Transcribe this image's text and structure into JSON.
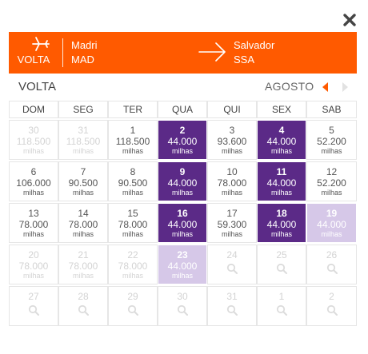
{
  "close_icon": "close-icon",
  "header": {
    "direction_icon": "airplane-icon",
    "direction_label": "VOLTA",
    "origin": {
      "city": "Madri",
      "code": "MAD"
    },
    "route_icon": "arrow-right-icon",
    "destination": {
      "city": "Salvador",
      "code": "SSA"
    }
  },
  "calendar": {
    "title": "VOLTA",
    "month": "AGOSTO",
    "prev_icon": "caret-left-icon",
    "next_icon": "caret-right-icon",
    "weekdays": [
      "DOM",
      "SEG",
      "TER",
      "QUA",
      "QUI",
      "SEX",
      "SAB"
    ],
    "unit": "milhas",
    "weeks": [
      [
        {
          "day": "30",
          "price": "118.500",
          "state": "faded"
        },
        {
          "day": "31",
          "price": "118.500",
          "state": "faded"
        },
        {
          "day": "1",
          "price": "118.500",
          "state": "normal"
        },
        {
          "day": "2",
          "price": "44.000",
          "state": "highlight"
        },
        {
          "day": "3",
          "price": "93.600",
          "state": "normal"
        },
        {
          "day": "4",
          "price": "44.000",
          "state": "highlight"
        },
        {
          "day": "5",
          "price": "52.200",
          "state": "normal"
        }
      ],
      [
        {
          "day": "6",
          "price": "106.000",
          "state": "normal"
        },
        {
          "day": "7",
          "price": "90.500",
          "state": "normal"
        },
        {
          "day": "8",
          "price": "90.500",
          "state": "normal"
        },
        {
          "day": "9",
          "price": "44.000",
          "state": "highlight"
        },
        {
          "day": "10",
          "price": "78.000",
          "state": "normal"
        },
        {
          "day": "11",
          "price": "44.000",
          "state": "highlight"
        },
        {
          "day": "12",
          "price": "52.200",
          "state": "normal"
        }
      ],
      [
        {
          "day": "13",
          "price": "78.000",
          "state": "normal"
        },
        {
          "day": "14",
          "price": "78.000",
          "state": "normal"
        },
        {
          "day": "15",
          "price": "78.000",
          "state": "normal"
        },
        {
          "day": "16",
          "price": "44.000",
          "state": "highlight"
        },
        {
          "day": "17",
          "price": "59.300",
          "state": "normal"
        },
        {
          "day": "18",
          "price": "44.000",
          "state": "highlight"
        },
        {
          "day": "19",
          "price": "44.000",
          "state": "selected"
        }
      ],
      [
        {
          "day": "20",
          "price": "78.000",
          "state": "faded"
        },
        {
          "day": "21",
          "price": "78.000",
          "state": "faded"
        },
        {
          "day": "22",
          "price": "78.000",
          "state": "faded"
        },
        {
          "day": "23",
          "price": "44.000",
          "state": "selected"
        },
        {
          "day": "24",
          "price": "",
          "state": "unavailable"
        },
        {
          "day": "25",
          "price": "",
          "state": "unavailable"
        },
        {
          "day": "26",
          "price": "",
          "state": "unavailable"
        }
      ],
      [
        {
          "day": "27",
          "price": "",
          "state": "unavailable"
        },
        {
          "day": "28",
          "price": "",
          "state": "unavailable"
        },
        {
          "day": "29",
          "price": "",
          "state": "unavailable"
        },
        {
          "day": "30",
          "price": "",
          "state": "unavailable"
        },
        {
          "day": "31",
          "price": "",
          "state": "unavailable"
        },
        {
          "day": "1",
          "price": "",
          "state": "unavailable"
        },
        {
          "day": "2",
          "price": "",
          "state": "unavailable"
        }
      ]
    ],
    "search_icon": "magnifier-icon"
  },
  "colors": {
    "header_bg": "#ff5a00",
    "highlight": "#5b2a87",
    "selected": "#d6c8e8",
    "nav_active": "#ff5a00",
    "nav_inactive": "#e2e2e2",
    "muted": "#d3d3d3"
  }
}
